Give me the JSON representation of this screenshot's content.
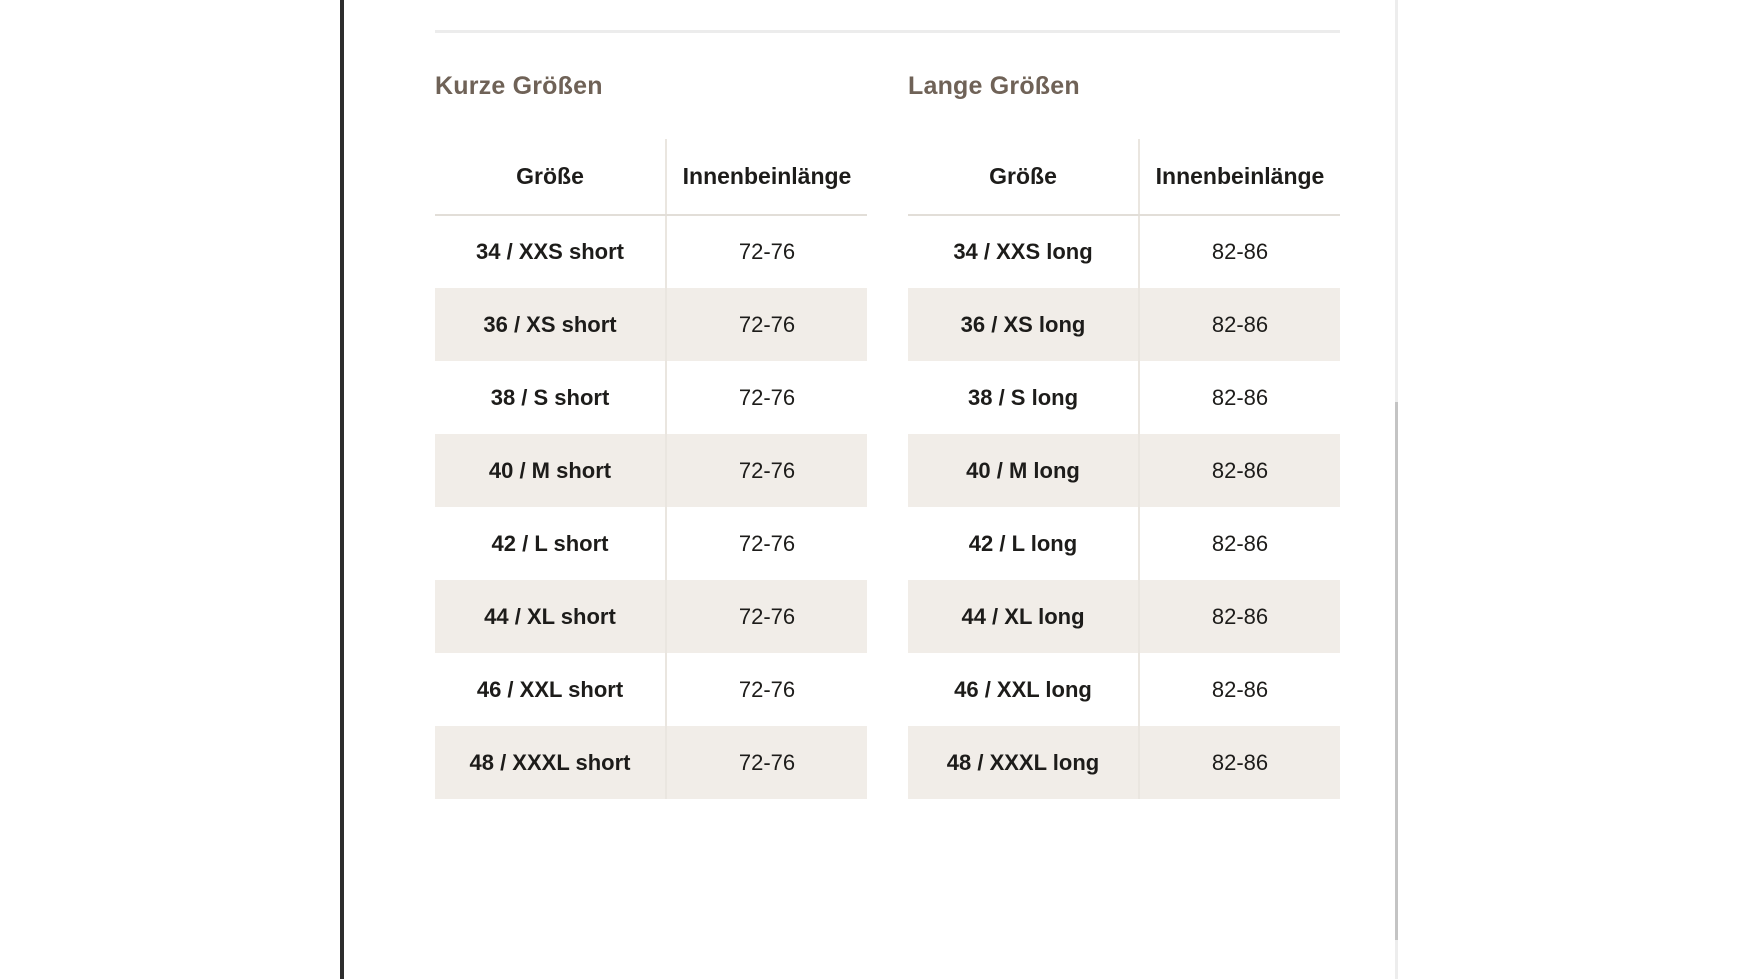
{
  "colors": {
    "left_rule": "#2d2d2d",
    "page_divider": "#ececec",
    "scrollbar_track": "#ededed",
    "scrollbar_thumb": "#c4c4c4",
    "section_title_text": "#6f6257",
    "table_text": "#1d1c1a",
    "row_alt_background": "#f1ede8",
    "table_line": "#e2ded8"
  },
  "tables": [
    {
      "title": "Kurze Größen",
      "columns": [
        "Größe",
        "Innenbeinlänge"
      ],
      "rows": [
        {
          "size": "34 / XXS short",
          "inseam": "72-76"
        },
        {
          "size": "36 / XS short",
          "inseam": "72-76"
        },
        {
          "size": "38 / S short",
          "inseam": "72-76"
        },
        {
          "size": "40 / M short",
          "inseam": "72-76"
        },
        {
          "size": "42 / L short",
          "inseam": "72-76"
        },
        {
          "size": "44 / XL short",
          "inseam": "72-76"
        },
        {
          "size": "46 / XXL short",
          "inseam": "72-76"
        },
        {
          "size": "48 / XXXL short",
          "inseam": "72-76"
        }
      ]
    },
    {
      "title": "Lange Größen",
      "columns": [
        "Größe",
        "Innenbeinlänge"
      ],
      "rows": [
        {
          "size": "34 / XXS long",
          "inseam": "82-86"
        },
        {
          "size": "36 / XS long",
          "inseam": "82-86"
        },
        {
          "size": "38 / S long",
          "inseam": "82-86"
        },
        {
          "size": "40 / M long",
          "inseam": "82-86"
        },
        {
          "size": "42 / L long",
          "inseam": "82-86"
        },
        {
          "size": "44 / XL long",
          "inseam": "82-86"
        },
        {
          "size": "46 / XXL long",
          "inseam": "82-86"
        },
        {
          "size": "48 / XXXL long",
          "inseam": "82-86"
        }
      ]
    }
  ]
}
